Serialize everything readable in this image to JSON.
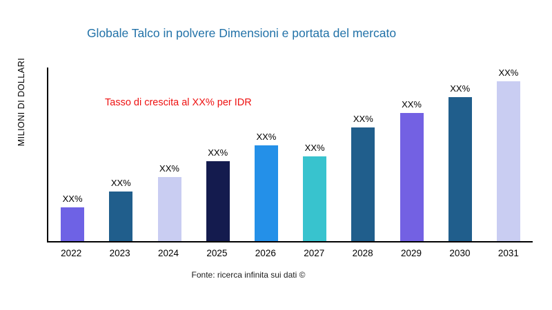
{
  "chart_data": {
    "type": "bar",
    "title": "Globale Talco in polvere Dimensioni e portata del mercato",
    "ylabel": "MILIONI DI DOLLARI",
    "xlabel": "",
    "categories": [
      "2022",
      "2023",
      "2024",
      "2025",
      "2026",
      "2027",
      "2028",
      "2029",
      "2030",
      "2031"
    ],
    "values": [
      21,
      31,
      40,
      50,
      60,
      53,
      71,
      80,
      90,
      100
    ],
    "values_unit": "relative height, % of tallest bar (actual figures masked as XX% in chart)",
    "value_labels": [
      "XX%",
      "XX%",
      "XX%",
      "XX%",
      "XX%",
      "XX%",
      "XX%",
      "XX%",
      "XX%",
      "XX%"
    ],
    "bar_colors": [
      "#6E62E5",
      "#205E8C",
      "#C9CDF2",
      "#141B4E",
      "#2490E8",
      "#38C3CE",
      "#205E8C",
      "#7361E3",
      "#205E8C",
      "#C9CDF2"
    ],
    "annotation": {
      "text": "Tasso di crescita al XX% per IDR",
      "color": "#EE1111"
    },
    "grid": false,
    "legend": false
  },
  "colors": {
    "title": "#2272A8",
    "axis": "#000000",
    "background": "#ffffff"
  },
  "footer": {
    "text": "Fonte: ricerca infinita sui dati ©"
  }
}
